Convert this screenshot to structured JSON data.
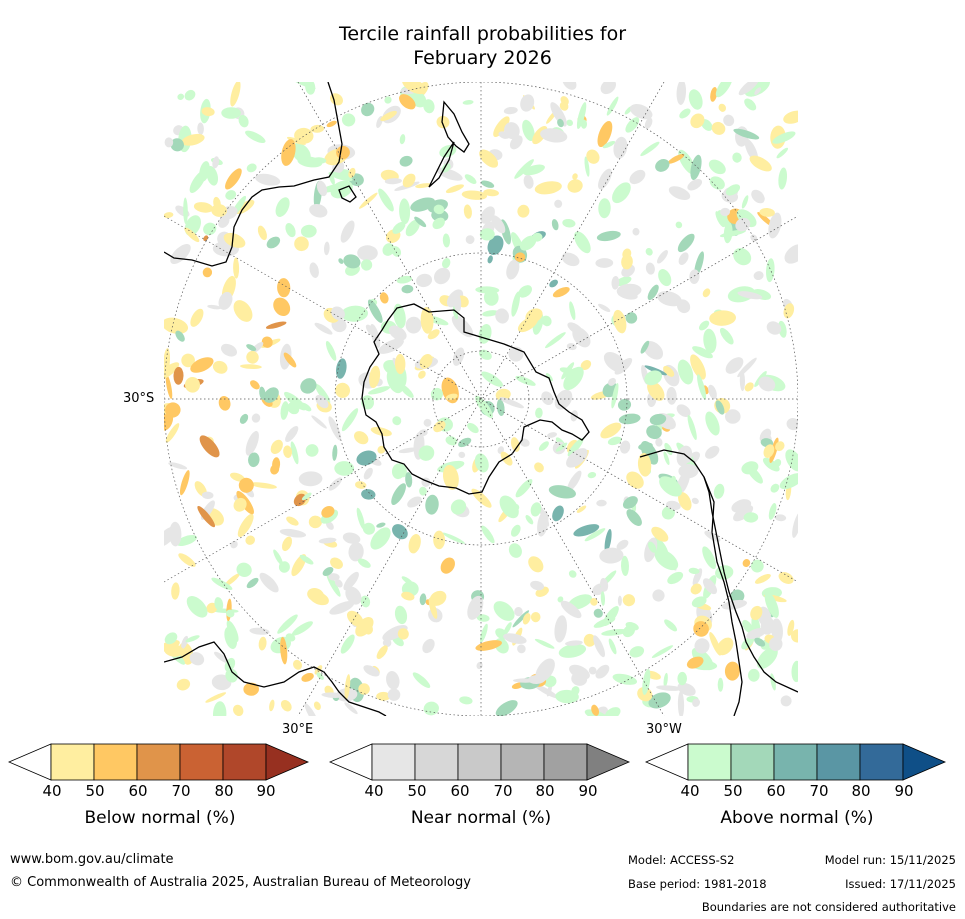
{
  "title": {
    "line1": "Tercile rainfall probabilities for",
    "line2": "February 2026"
  },
  "map": {
    "projection": "south-polar-stereographic",
    "lat_label": "30°S",
    "lon_labels": {
      "east": "30°E",
      "west": "30°W"
    }
  },
  "colorbars": [
    {
      "id": "below",
      "label": "Below normal (%)",
      "ticks": [
        "40",
        "50",
        "60",
        "70",
        "80",
        "90"
      ],
      "colors": [
        "#ffeea0",
        "#ffc863",
        "#e0944a",
        "#ca6233",
        "#b0472a",
        "#973020"
      ]
    },
    {
      "id": "near",
      "label": "Near normal (%)",
      "ticks": [
        "40",
        "50",
        "60",
        "70",
        "80",
        "90"
      ],
      "colors": [
        "#e6e6e6",
        "#d7d7d7",
        "#c9c9c9",
        "#b5b5b5",
        "#a1a1a1",
        "#808080"
      ]
    },
    {
      "id": "above",
      "label": "Above normal (%)",
      "ticks": [
        "40",
        "50",
        "60",
        "70",
        "80",
        "90"
      ],
      "colors": [
        "#cbfbce",
        "#a3d8b9",
        "#78b4ad",
        "#5a96a4",
        "#336a99",
        "#0f4f87"
      ]
    }
  ],
  "footer": {
    "website": "www.bom.gov.au/climate",
    "copyright": "© Commonwealth of Australia 2025, Australian Bureau of Meteorology",
    "model": "Model: ACCESS-S2",
    "model_run": "Model run: 15/11/2025",
    "base_period": "Base period: 1981-2018",
    "issued": "Issued: 17/11/2025",
    "disclaimer": "Boundaries are not considered authoritative"
  }
}
